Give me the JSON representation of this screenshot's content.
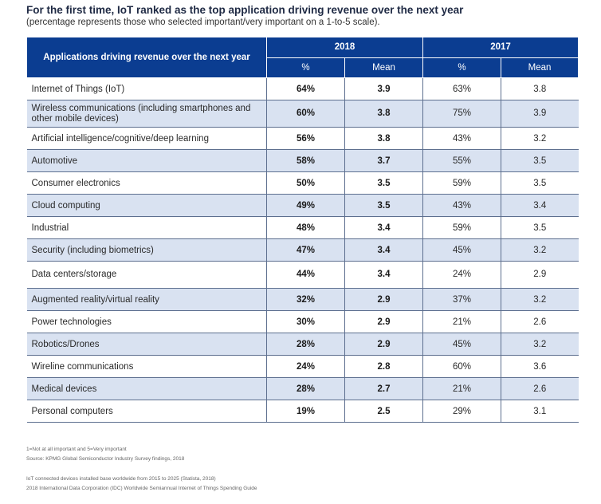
{
  "heading": {
    "title": "For the first time, IoT ranked as the top application driving revenue over the next year",
    "subtitle": "(percentage represents those who selected important/very important on a 1-to-5 scale)."
  },
  "table": {
    "app_header": "Applications driving revenue over the next year",
    "year_2018": "2018",
    "year_2017": "2017",
    "pct_label": "%",
    "mean_label": "Mean",
    "rows": [
      {
        "app": "Internet of Things (IoT)",
        "pct2018": "64%",
        "mean2018": "3.9",
        "pct2017": "63%",
        "mean2017": "3.8"
      },
      {
        "app": "Wireless communications (including smartphones and other mobile devices)",
        "pct2018": "60%",
        "mean2018": "3.8",
        "pct2017": "75%",
        "mean2017": "3.9"
      },
      {
        "app": "Artificial intelligence/cognitive/deep learning",
        "pct2018": "56%",
        "mean2018": "3.8",
        "pct2017": "43%",
        "mean2017": "3.2"
      },
      {
        "app": "Automotive",
        "pct2018": "58%",
        "mean2018": "3.7",
        "pct2017": "55%",
        "mean2017": "3.5"
      },
      {
        "app": "Consumer electronics",
        "pct2018": "50%",
        "mean2018": "3.5",
        "pct2017": "59%",
        "mean2017": "3.5"
      },
      {
        "app": "Cloud computing",
        "pct2018": "49%",
        "mean2018": "3.5",
        "pct2017": "43%",
        "mean2017": "3.4"
      },
      {
        "app": "Industrial",
        "pct2018": "48%",
        "mean2018": "3.4",
        "pct2017": "59%",
        "mean2017": "3.5"
      },
      {
        "app": "Security (including biometrics)",
        "pct2018": "47%",
        "mean2018": "3.4",
        "pct2017": "45%",
        "mean2017": "3.2"
      },
      {
        "app": "Data centers/storage",
        "pct2018": "44%",
        "mean2018": "3.4",
        "pct2017": "24%",
        "mean2017": "2.9"
      },
      {
        "app": "Augmented reality/virtual reality",
        "pct2018": "32%",
        "mean2018": "2.9",
        "pct2017": "37%",
        "mean2017": "3.2"
      },
      {
        "app": "Power technologies",
        "pct2018": "30%",
        "mean2018": "2.9",
        "pct2017": "21%",
        "mean2017": "2.6"
      },
      {
        "app": "Robotics/Drones",
        "pct2018": "28%",
        "mean2018": "2.9",
        "pct2017": "45%",
        "mean2017": "3.2"
      },
      {
        "app": "Wireline communications",
        "pct2018": "24%",
        "mean2018": "2.8",
        "pct2017": "60%",
        "mean2017": "3.6"
      },
      {
        "app": "Medical devices",
        "pct2018": "28%",
        "mean2018": "2.7",
        "pct2017": "21%",
        "mean2017": "2.6"
      },
      {
        "app": "Personal computers",
        "pct2018": "19%",
        "mean2018": "2.5",
        "pct2017": "29%",
        "mean2017": "3.1"
      }
    ]
  },
  "notes": {
    "scale": "1=Not at all important and 5=Very important",
    "source": "Source: KPMG Global Semiconductor Industry Survey findings, 2018",
    "iot_devices": "IoT connected devices installed base worldwide from 2015 to 2025 (Statista, 2018)",
    "idc": "2018 International Data Corporation (IDC) Worldwide Semiannual Internet of Things Spending Guide"
  }
}
